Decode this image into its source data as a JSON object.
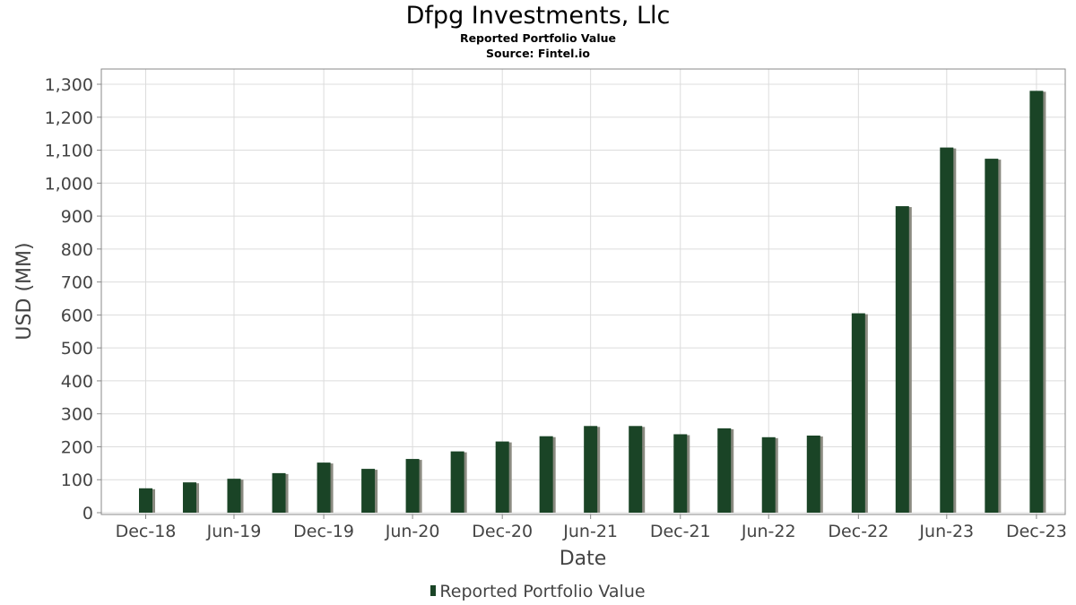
{
  "header": {
    "title": "Dfpg Investments, Llc",
    "subtitle": "Reported Portfolio Value",
    "source": "Source: Fintel.io"
  },
  "colors": {
    "bar": "#1a4426",
    "bar_shadow": "#8a8a80",
    "grid": "#dcdcdc",
    "axis_text": "#444444"
  },
  "chart_data": {
    "type": "bar",
    "title": "Dfpg Investments, Llc",
    "subtitle": "Reported Portfolio Value",
    "xlabel": "Date",
    "ylabel": "USD (MM)",
    "ylim": [
      0,
      1350
    ],
    "yticks": [
      0,
      100,
      200,
      300,
      400,
      500,
      600,
      700,
      800,
      900,
      1000,
      1100,
      1200,
      1300
    ],
    "ytick_labels": [
      "0",
      "100",
      "200",
      "300",
      "400",
      "500",
      "600",
      "700",
      "800",
      "900",
      "1,000",
      "1,100",
      "1,200",
      "1,300"
    ],
    "xlim": [
      "2018-10-01",
      "2024-02-28"
    ],
    "xticks": [
      {
        "date": "2018-12-31",
        "label": "Dec-18"
      },
      {
        "date": "2019-06-30",
        "label": "Jun-19"
      },
      {
        "date": "2019-12-31",
        "label": "Dec-19"
      },
      {
        "date": "2020-06-30",
        "label": "Jun-20"
      },
      {
        "date": "2020-12-31",
        "label": "Dec-20"
      },
      {
        "date": "2021-06-30",
        "label": "Jun-21"
      },
      {
        "date": "2021-12-31",
        "label": "Dec-21"
      },
      {
        "date": "2022-06-30",
        "label": "Jun-22"
      },
      {
        "date": "2022-12-31",
        "label": "Dec-22"
      },
      {
        "date": "2023-06-30",
        "label": "Jun-23"
      },
      {
        "date": "2023-12-31",
        "label": "Dec-23"
      }
    ],
    "grid": true,
    "legend_position": "bottom-center",
    "series": [
      {
        "name": "Reported Portfolio Value",
        "x": [
          "2018-12-31",
          "2019-03-31",
          "2019-06-30",
          "2019-09-30",
          "2019-12-31",
          "2020-03-31",
          "2020-06-30",
          "2020-09-30",
          "2020-12-31",
          "2021-03-31",
          "2021-06-30",
          "2021-09-30",
          "2021-12-31",
          "2022-03-31",
          "2022-06-30",
          "2022-09-30",
          "2022-12-31",
          "2023-03-31",
          "2023-06-30",
          "2023-09-30",
          "2023-12-31"
        ],
        "values": [
          74,
          92,
          103,
          120,
          152,
          133,
          163,
          186,
          216,
          232,
          263,
          263,
          238,
          256,
          229,
          234,
          605,
          930,
          1108,
          1074,
          1280
        ]
      }
    ]
  }
}
